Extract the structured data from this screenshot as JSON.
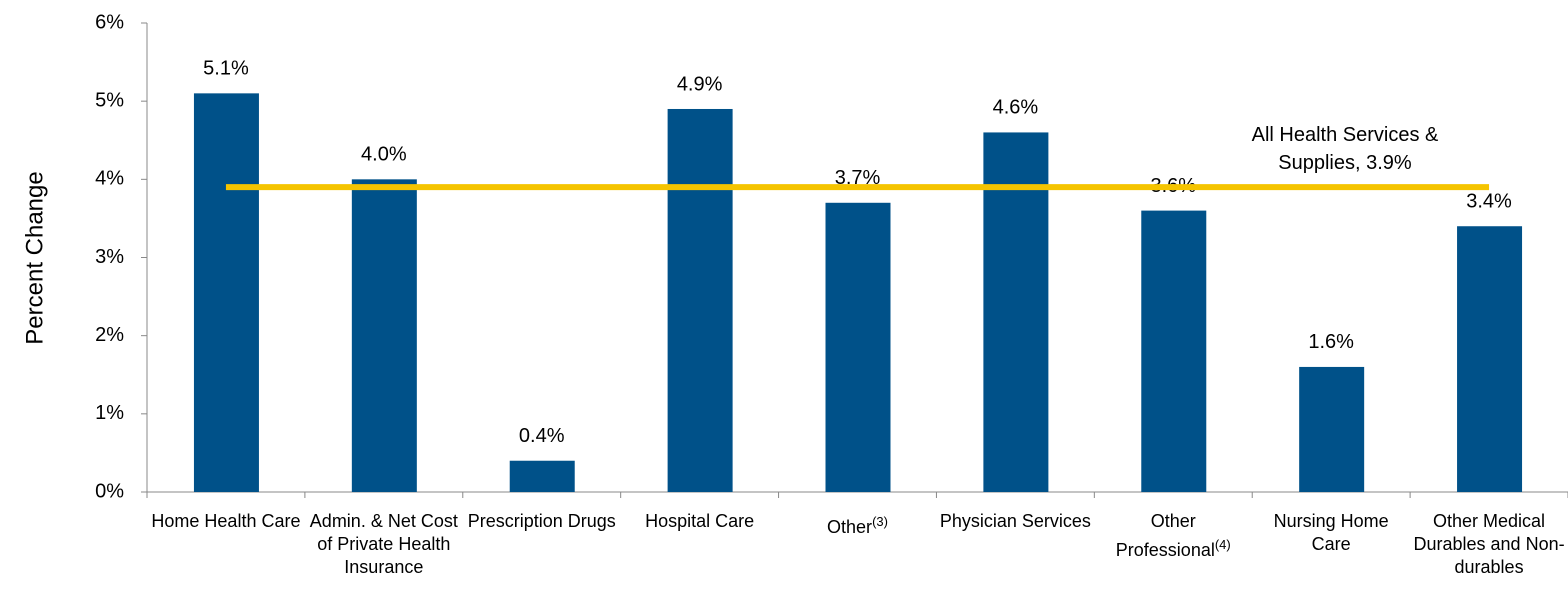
{
  "chart_data": {
    "type": "bar",
    "y_axis_label": "Percent Change",
    "categories": [
      "Home Health Care",
      "Admin. & Net Cost of Private Health Insurance",
      "Prescription Drugs",
      "Hospital Care",
      "Other",
      "Physician Services",
      "Other Professional",
      "Nursing Home Care",
      "Other Medical Durables and Non-durables"
    ],
    "category_notes": [
      null,
      null,
      null,
      null,
      "(3)",
      null,
      "(4)",
      null,
      null
    ],
    "values": [
      5.1,
      4.0,
      0.4,
      4.9,
      3.7,
      4.6,
      3.6,
      1.6,
      3.4
    ],
    "value_labels": [
      "5.1%",
      "4.0%",
      "0.4%",
      "4.9%",
      "3.7%",
      "4.6%",
      "3.6%",
      "1.6%",
      "3.4%"
    ],
    "color": "#005189",
    "reference_value": 3.9,
    "reference_label": "All Health Services & Supplies, 3.9%",
    "reference_color": "#f5c400",
    "ylim": [
      0,
      6
    ],
    "yticks": [
      {
        "value": 0,
        "label": "0%"
      },
      {
        "value": 1,
        "label": "1%"
      },
      {
        "value": 2,
        "label": "2%"
      },
      {
        "value": 3,
        "label": "3%"
      },
      {
        "value": 4,
        "label": "4%"
      },
      {
        "value": 5,
        "label": "5%"
      },
      {
        "value": 6,
        "label": "6%"
      }
    ]
  }
}
